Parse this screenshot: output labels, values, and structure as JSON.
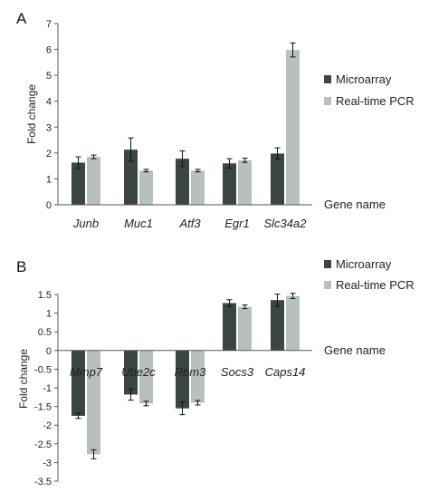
{
  "chart_data": [
    {
      "type": "bar",
      "panel": "A",
      "categories": [
        "Junb",
        "Muc1",
        "Atf3",
        "Egr1",
        "Slc34a2"
      ],
      "series": [
        {
          "name": "Microarray",
          "color": "#3b4643",
          "values": [
            1.63,
            2.13,
            1.78,
            1.6,
            1.98
          ],
          "errors": [
            0.22,
            0.45,
            0.3,
            0.18,
            0.22
          ]
        },
        {
          "name": "Real-time PCR",
          "color": "#b8c0bd",
          "values": [
            1.85,
            1.32,
            1.32,
            1.72,
            5.98
          ],
          "errors": [
            0.07,
            0.05,
            0.05,
            0.08,
            0.27
          ]
        }
      ],
      "ylabel": "Fold change",
      "xlabel": "Gene name",
      "ylim": [
        0,
        7
      ],
      "yticks": [
        "0",
        "1",
        "2",
        "3",
        "4",
        "5",
        "6",
        "7"
      ],
      "legend": "right",
      "grid": false
    },
    {
      "type": "bar",
      "panel": "B",
      "categories": [
        "Mmp7",
        "Ube2c",
        "Rbm3",
        "Socs3",
        "Caps14"
      ],
      "series": [
        {
          "name": "Microarray",
          "color": "#3b4643",
          "values": [
            -1.75,
            -1.18,
            -1.55,
            1.27,
            1.35
          ],
          "errors": [
            0.07,
            0.15,
            0.17,
            0.09,
            0.16
          ]
        },
        {
          "name": "Real-time PCR",
          "color": "#b8c0bd",
          "values": [
            -2.78,
            -1.42,
            -1.4,
            1.17,
            1.46
          ],
          "errors": [
            0.12,
            0.06,
            0.06,
            0.05,
            0.07
          ]
        }
      ],
      "ylabel": "Fold change",
      "xlabel": "Gene name",
      "ylim": [
        -3.5,
        1.5
      ],
      "yticks": [
        "-3.5",
        "-3",
        "-2.5",
        "-2",
        "-1.5",
        "-1",
        "-0.5",
        "0",
        "0.5",
        "1",
        "1.5"
      ],
      "legend": "top-right",
      "grid": false
    }
  ]
}
